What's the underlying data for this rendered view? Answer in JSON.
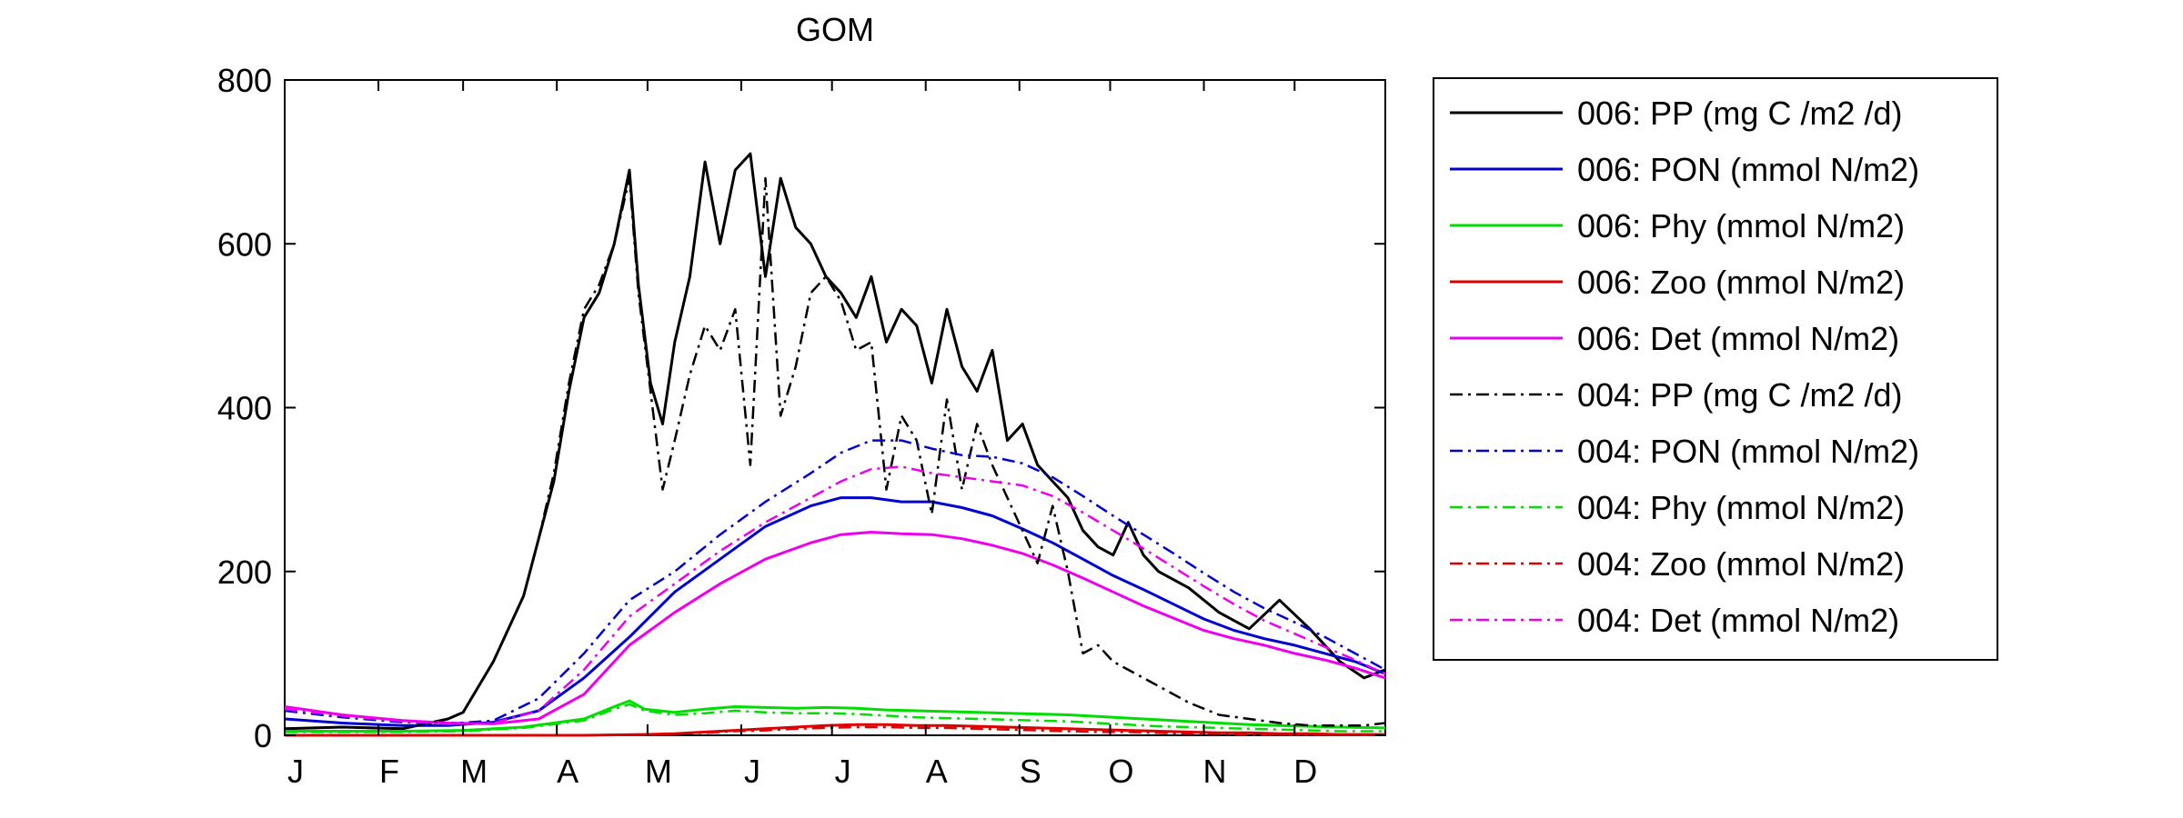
{
  "chart_data": {
    "type": "line",
    "title": "GOM",
    "xlabel": "",
    "ylabel": "",
    "ylim": [
      0,
      800
    ],
    "xlim": [
      1,
      365
    ],
    "y_ticks": [
      0,
      200,
      400,
      600,
      800
    ],
    "y_tick_labels": [
      "0",
      "200",
      "400",
      "600",
      "800"
    ],
    "x_ticks": [
      1,
      32,
      60,
      91,
      121,
      152,
      182,
      213,
      244,
      274,
      305,
      335
    ],
    "x_tick_labels": [
      "J",
      "F",
      "M",
      "A",
      "M",
      "J",
      "J",
      "A",
      "S",
      "O",
      "N",
      "D"
    ],
    "grid": false,
    "legend_position": "outside-right",
    "series": [
      {
        "name": "006: PP (mg C /m2 /d)",
        "color": "#000000",
        "style": "solid",
        "x": [
          1,
          20,
          40,
          55,
          60,
          70,
          80,
          85,
          90,
          95,
          100,
          105,
          110,
          115,
          118,
          122,
          126,
          130,
          135,
          140,
          145,
          150,
          155,
          160,
          165,
          170,
          175,
          180,
          185,
          190,
          195,
          200,
          205,
          210,
          215,
          220,
          225,
          230,
          235,
          240,
          245,
          250,
          255,
          260,
          265,
          270,
          275,
          280,
          285,
          290,
          300,
          310,
          320,
          330,
          340,
          350,
          358,
          365
        ],
        "y": [
          8,
          10,
          8,
          20,
          28,
          90,
          170,
          240,
          310,
          420,
          510,
          540,
          600,
          690,
          550,
          430,
          380,
          480,
          560,
          700,
          600,
          690,
          710,
          560,
          680,
          620,
          600,
          560,
          540,
          510,
          560,
          480,
          520,
          500,
          430,
          520,
          450,
          420,
          470,
          360,
          380,
          330,
          310,
          290,
          250,
          230,
          220,
          260,
          220,
          200,
          180,
          150,
          130,
          165,
          130,
          90,
          70,
          80
        ]
      },
      {
        "name": "006: PON (mmol N/m2)",
        "color": "#0000d0",
        "style": "solid",
        "x": [
          1,
          20,
          40,
          55,
          70,
          85,
          100,
          115,
          130,
          145,
          160,
          175,
          185,
          195,
          205,
          215,
          225,
          235,
          245,
          255,
          265,
          275,
          285,
          295,
          305,
          315,
          325,
          335,
          345,
          355,
          365
        ],
        "y": [
          20,
          15,
          12,
          12,
          16,
          30,
          70,
          120,
          175,
          215,
          255,
          280,
          290,
          290,
          285,
          285,
          278,
          268,
          252,
          235,
          215,
          195,
          178,
          160,
          142,
          128,
          118,
          110,
          100,
          90,
          75
        ]
      },
      {
        "name": "006: Phy (mmol N/m2)",
        "color": "#00dd00",
        "style": "solid",
        "x": [
          1,
          20,
          40,
          60,
          80,
          100,
          110,
          115,
          120,
          130,
          140,
          150,
          160,
          170,
          180,
          190,
          200,
          210,
          220,
          230,
          240,
          250,
          260,
          270,
          280,
          290,
          300,
          310,
          320,
          330,
          340,
          350,
          365
        ],
        "y": [
          5,
          5,
          5,
          6,
          10,
          20,
          35,
          42,
          32,
          28,
          32,
          35,
          34,
          33,
          34,
          33,
          31,
          30,
          29,
          28,
          27,
          26,
          25,
          23,
          21,
          19,
          17,
          15,
          13,
          12,
          11,
          10,
          9
        ]
      },
      {
        "name": "006: Zoo (mmol N/m2)",
        "color": "#dd0000",
        "style": "solid",
        "x": [
          1,
          60,
          100,
          120,
          130,
          140,
          150,
          160,
          170,
          180,
          190,
          200,
          210,
          220,
          230,
          240,
          250,
          260,
          270,
          280,
          290,
          300,
          310,
          320,
          330,
          340,
          350,
          365
        ],
        "y": [
          0,
          0,
          0,
          1,
          2,
          4,
          6,
          8,
          10,
          12,
          13,
          13,
          12,
          12,
          11,
          10,
          9,
          8,
          7,
          6,
          5,
          4,
          3,
          3,
          2,
          2,
          1,
          1
        ]
      },
      {
        "name": "006: Det (mmol N/m2)",
        "color": "#ee00ee",
        "style": "solid",
        "x": [
          1,
          20,
          40,
          55,
          70,
          85,
          100,
          115,
          130,
          145,
          160,
          175,
          185,
          195,
          205,
          215,
          225,
          235,
          245,
          255,
          265,
          275,
          285,
          295,
          305,
          315,
          325,
          335,
          345,
          355,
          365
        ],
        "y": [
          35,
          25,
          18,
          15,
          14,
          20,
          50,
          110,
          150,
          185,
          215,
          235,
          245,
          248,
          246,
          245,
          240,
          232,
          222,
          208,
          192,
          175,
          158,
          143,
          128,
          118,
          110,
          100,
          92,
          82,
          70
        ]
      },
      {
        "name": "004: PP (mg C /m2 /d)",
        "color": "#000000",
        "style": "dashdot",
        "x": [
          1,
          20,
          40,
          55,
          60,
          70,
          80,
          85,
          90,
          95,
          100,
          105,
          110,
          115,
          118,
          122,
          126,
          130,
          135,
          140,
          145,
          150,
          155,
          160,
          165,
          170,
          175,
          180,
          185,
          190,
          195,
          200,
          205,
          210,
          215,
          220,
          225,
          230,
          235,
          240,
          245,
          250,
          255,
          260,
          265,
          270,
          275,
          280,
          285,
          290,
          300,
          310,
          320,
          330,
          340,
          350,
          358,
          365
        ],
        "y": [
          8,
          10,
          8,
          20,
          28,
          90,
          170,
          240,
          320,
          430,
          520,
          550,
          600,
          680,
          540,
          420,
          300,
          360,
          440,
          500,
          470,
          520,
          330,
          680,
          390,
          450,
          540,
          560,
          530,
          470,
          480,
          300,
          390,
          360,
          270,
          410,
          300,
          380,
          330,
          290,
          250,
          210,
          280,
          200,
          100,
          110,
          90,
          80,
          70,
          60,
          40,
          25,
          20,
          15,
          12,
          12,
          12,
          15
        ]
      },
      {
        "name": "004: PON (mmol N/m2)",
        "color": "#0000d0",
        "style": "dashdot",
        "x": [
          1,
          20,
          40,
          55,
          70,
          85,
          100,
          115,
          130,
          145,
          160,
          175,
          185,
          195,
          205,
          215,
          225,
          235,
          245,
          255,
          265,
          275,
          285,
          295,
          305,
          315,
          325,
          335,
          345,
          355,
          365
        ],
        "y": [
          30,
          22,
          16,
          14,
          18,
          45,
          100,
          165,
          200,
          245,
          285,
          320,
          345,
          360,
          360,
          350,
          342,
          340,
          332,
          315,
          292,
          268,
          245,
          222,
          198,
          175,
          155,
          138,
          120,
          100,
          80
        ]
      },
      {
        "name": "004: Phy (mmol N/m2)",
        "color": "#00dd00",
        "style": "dashdot",
        "x": [
          1,
          20,
          40,
          60,
          80,
          100,
          110,
          115,
          120,
          130,
          140,
          150,
          160,
          170,
          180,
          190,
          200,
          210,
          220,
          230,
          240,
          250,
          260,
          270,
          280,
          290,
          300,
          310,
          320,
          330,
          340,
          350,
          365
        ],
        "y": [
          4,
          4,
          4,
          5,
          9,
          18,
          32,
          38,
          30,
          25,
          27,
          30,
          28,
          27,
          27,
          26,
          24,
          22,
          21,
          20,
          19,
          18,
          17,
          15,
          13,
          11,
          10,
          9,
          8,
          7,
          6,
          5,
          5
        ]
      },
      {
        "name": "004: Zoo (mmol N/m2)",
        "color": "#dd0000",
        "style": "dashdot",
        "x": [
          1,
          60,
          100,
          120,
          130,
          140,
          150,
          160,
          170,
          180,
          190,
          200,
          210,
          220,
          230,
          240,
          250,
          260,
          270,
          280,
          290,
          300,
          310,
          320,
          330,
          340,
          350,
          365
        ],
        "y": [
          0,
          0,
          0,
          1,
          2,
          3,
          5,
          6,
          8,
          9,
          10,
          10,
          9,
          9,
          8,
          7,
          6,
          5,
          4,
          4,
          3,
          2,
          2,
          1,
          1,
          1,
          1,
          1
        ]
      },
      {
        "name": "004: Det (mmol N/m2)",
        "color": "#ee00ee",
        "style": "dashdot",
        "x": [
          1,
          20,
          40,
          55,
          70,
          85,
          100,
          115,
          130,
          145,
          160,
          175,
          185,
          195,
          205,
          215,
          225,
          235,
          245,
          255,
          265,
          275,
          285,
          295,
          305,
          315,
          325,
          335,
          345,
          355,
          365
        ],
        "y": [
          32,
          24,
          17,
          14,
          15,
          30,
          80,
          145,
          185,
          225,
          260,
          290,
          310,
          325,
          328,
          320,
          315,
          310,
          305,
          292,
          272,
          250,
          228,
          205,
          182,
          160,
          140,
          124,
          108,
          92,
          75
        ]
      }
    ]
  }
}
